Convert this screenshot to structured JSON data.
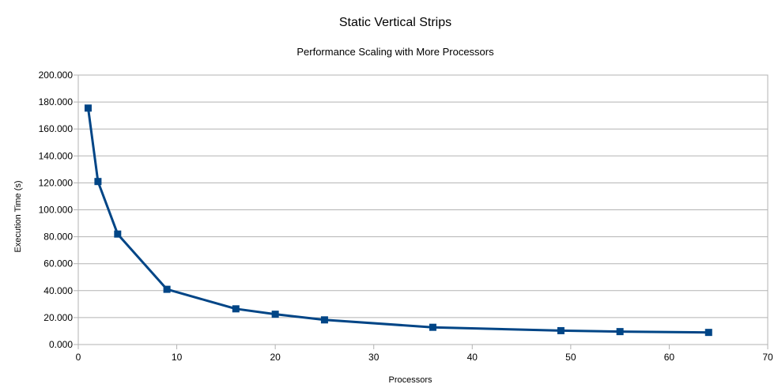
{
  "chart_data": {
    "type": "line",
    "title": "Static Vertical Strips",
    "subtitle": "Performance Scaling with More Processors",
    "xlabel": "Processors",
    "ylabel": "Execution Time (s)",
    "xlim": [
      0,
      70
    ],
    "ylim": [
      0,
      200
    ],
    "x_ticks": [
      0,
      10,
      20,
      30,
      40,
      50,
      60,
      70
    ],
    "x_tick_labels": [
      "0",
      "10",
      "20",
      "30",
      "40",
      "50",
      "60",
      "70"
    ],
    "y_ticks": [
      0,
      20,
      40,
      60,
      80,
      100,
      120,
      140,
      160,
      180,
      200
    ],
    "y_tick_labels": [
      "0.000",
      "20.000",
      "40.000",
      "60.000",
      "80.000",
      "100.000",
      "120.000",
      "140.000",
      "160.000",
      "180.000",
      "200.000"
    ],
    "grid": true,
    "marker": "square",
    "series": [
      {
        "color": "#004586",
        "x": [
          1,
          2,
          4,
          9,
          16,
          20,
          25,
          36,
          49,
          55,
          64
        ],
        "y": [
          175.5,
          121.0,
          82.0,
          41.0,
          26.5,
          22.5,
          18.3,
          12.8,
          10.3,
          9.6,
          9.0
        ]
      }
    ]
  }
}
